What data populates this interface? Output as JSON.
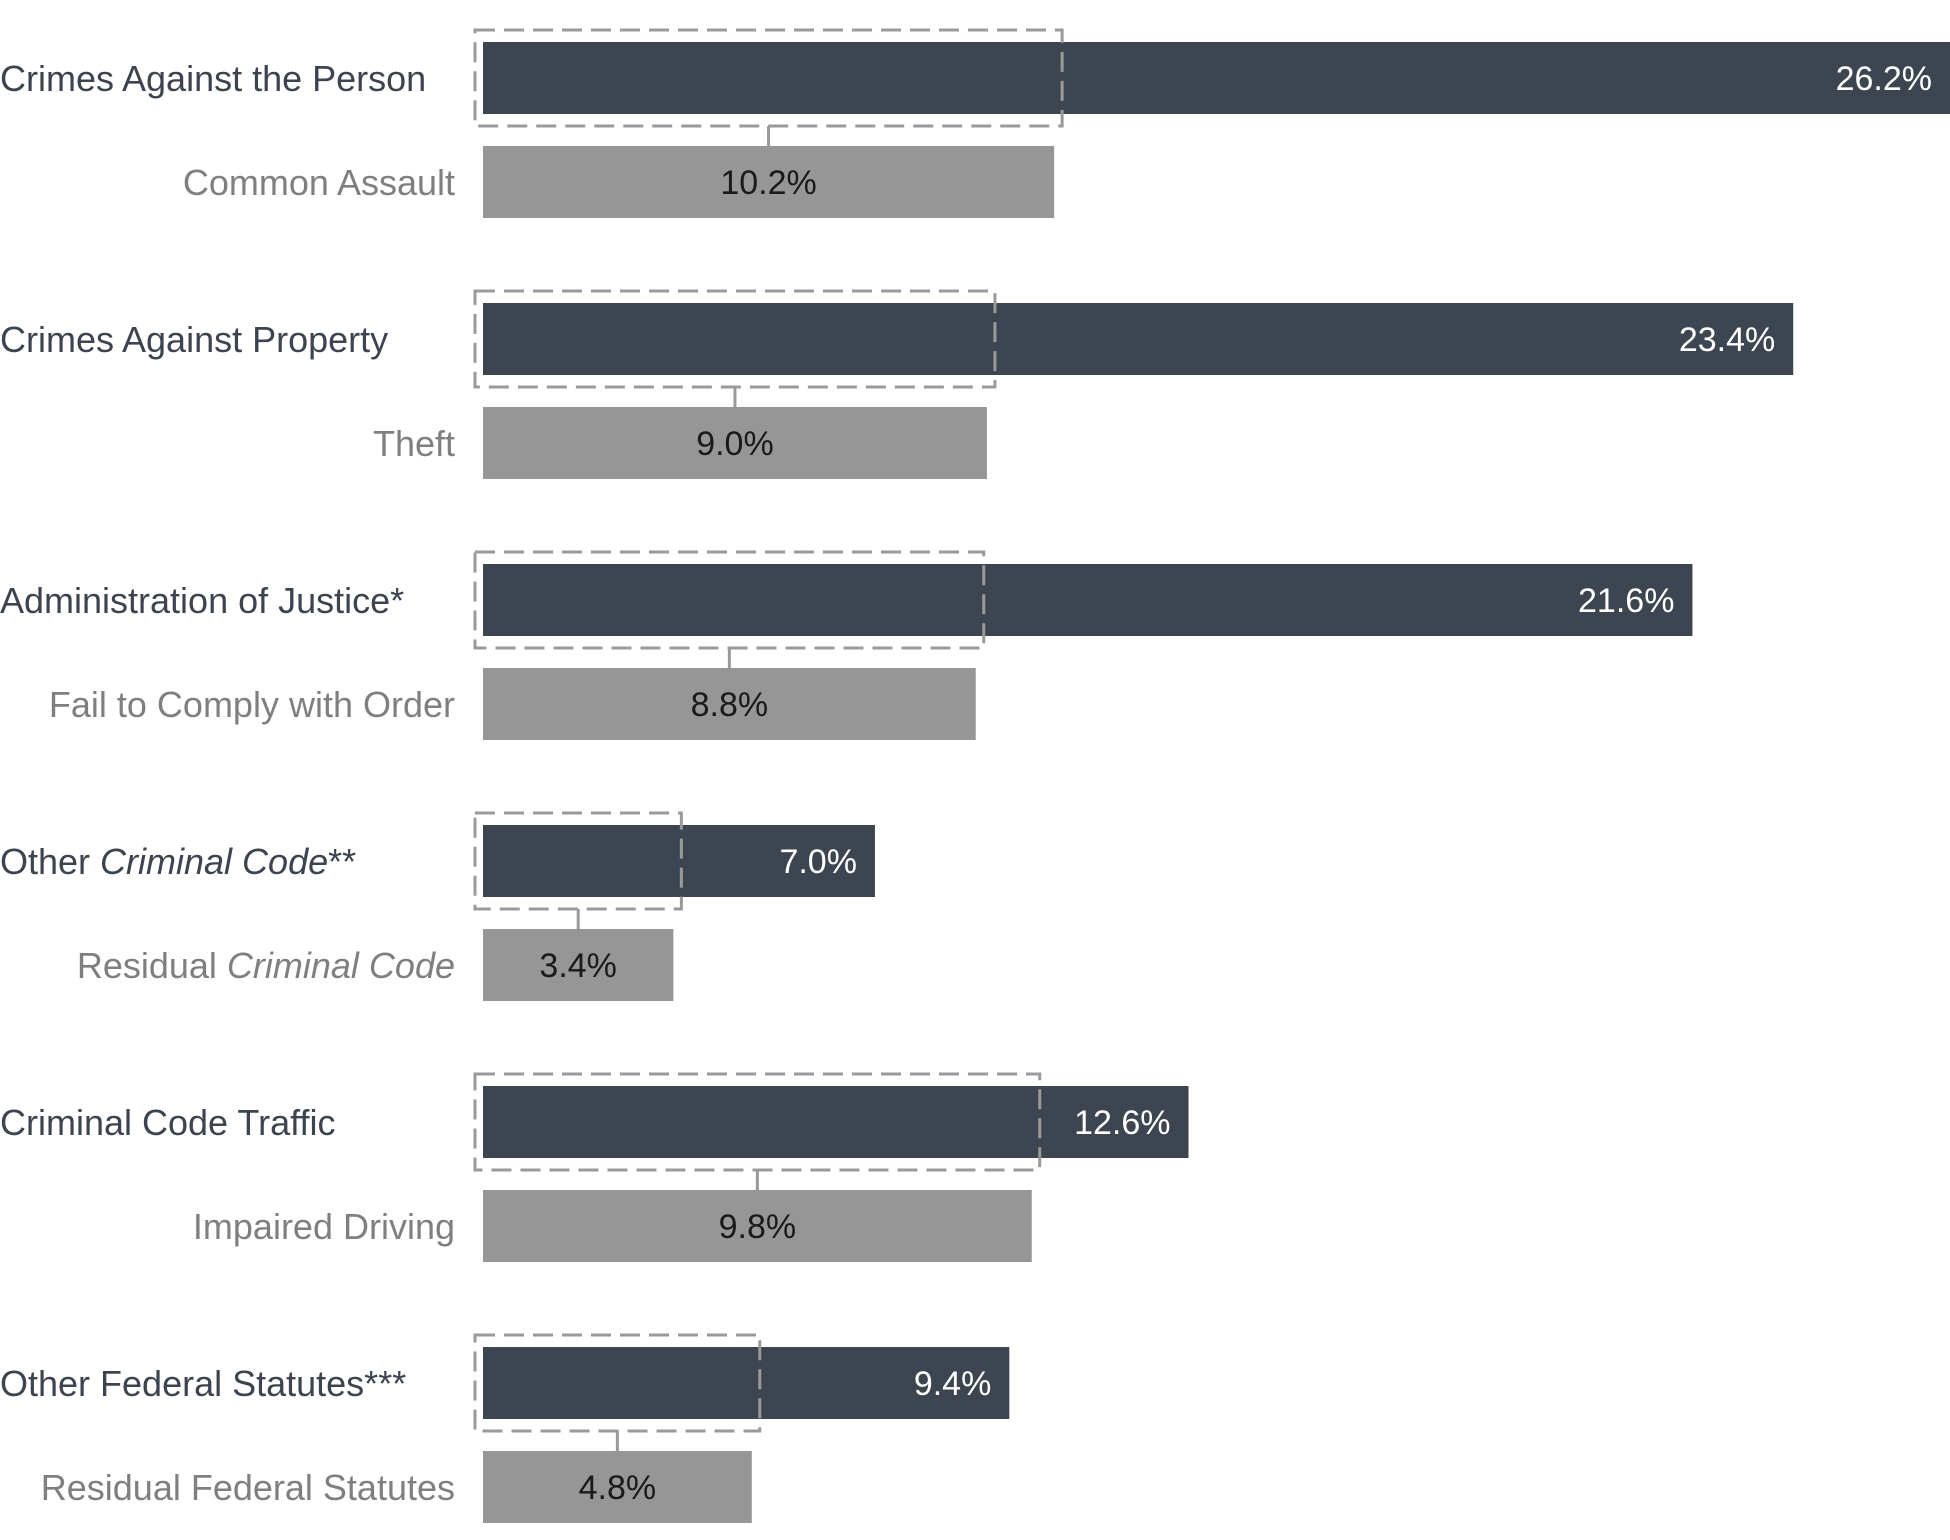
{
  "colors": {
    "main_bar": "#3d4551",
    "sub_bar": "#969696",
    "dash_box": "#9a9a9a"
  },
  "chart_data": {
    "type": "bar",
    "orientation": "horizontal",
    "title": "",
    "xlabel": "",
    "ylabel": "",
    "xlim": [
      0,
      26.2
    ],
    "grid": false,
    "groups": [
      {
        "category": "Crimes Against the Person",
        "category_italic": "",
        "category_suffix": "",
        "value": 26.2,
        "value_label": "26.2%",
        "sub_category": "Common Assault",
        "sub_italic": "",
        "sub_value": 10.2,
        "sub_value_label": "10.2%"
      },
      {
        "category": "Crimes Against Property",
        "category_italic": "",
        "category_suffix": "",
        "value": 23.4,
        "value_label": "23.4%",
        "sub_category": "Theft",
        "sub_italic": "",
        "sub_value": 9.0,
        "sub_value_label": "9.0%"
      },
      {
        "category": "Administration of Justice*",
        "category_italic": "",
        "category_suffix": "",
        "value": 21.6,
        "value_label": "21.6%",
        "sub_category": "Fail to Comply with Order",
        "sub_italic": "",
        "sub_value": 8.8,
        "sub_value_label": "8.8%"
      },
      {
        "category": "Other ",
        "category_italic": "Criminal Code",
        "category_suffix": "**",
        "value": 7.0,
        "value_label": "7.0%",
        "sub_category": "Residual ",
        "sub_italic": "Criminal Code",
        "sub_value": 3.4,
        "sub_value_label": "3.4%"
      },
      {
        "category": "Criminal Code Traffic",
        "category_italic": "",
        "category_suffix": "",
        "value": 12.6,
        "value_label": "12.6%",
        "sub_category": "Impaired Driving",
        "sub_italic": "",
        "sub_value": 9.8,
        "sub_value_label": "9.8%"
      },
      {
        "category": "Other Federal Statutes***",
        "category_italic": "",
        "category_suffix": "",
        "value": 9.4,
        "value_label": "9.4%",
        "sub_category": "Residual Federal Statutes",
        "sub_italic": "",
        "sub_value": 4.8,
        "sub_value_label": "4.8%"
      }
    ]
  }
}
